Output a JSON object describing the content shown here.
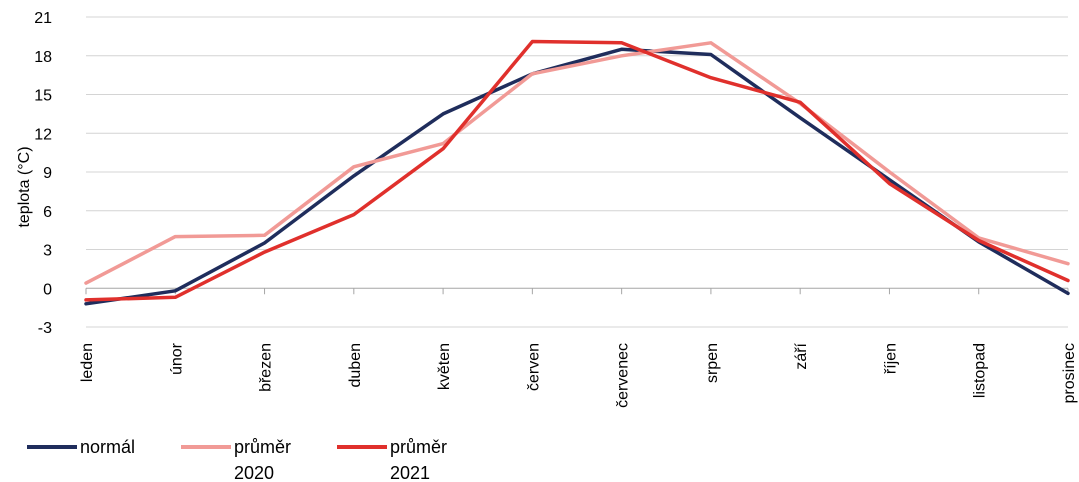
{
  "chart_data": {
    "type": "line",
    "title": "",
    "xlabel": "",
    "ylabel": "teplota (°C)",
    "ylim": [
      -3,
      21
    ],
    "yticks": [
      -3,
      0,
      3,
      6,
      9,
      12,
      15,
      18,
      21
    ],
    "ytick_labels": [
      "-3",
      "0",
      "3",
      "6",
      "9",
      "12",
      "15",
      "18",
      "21"
    ],
    "grid": true,
    "legend_position": "bottom-left",
    "categories": [
      "leden",
      "únor",
      "březen",
      "duben",
      "květen",
      "červen",
      "červenec",
      "srpen",
      "září",
      "říjen",
      "listopad",
      "prosinec"
    ],
    "series": [
      {
        "name": "normál",
        "color": "#1f2d5c",
        "values": [
          -1.2,
          -0.2,
          3.5,
          8.7,
          13.5,
          16.6,
          18.5,
          18.1,
          13.2,
          8.4,
          3.6,
          -0.4
        ]
      },
      {
        "name": "průměr 2020",
        "color": "#f19a96",
        "values": [
          0.4,
          4.0,
          4.1,
          9.4,
          11.2,
          16.6,
          18.0,
          19.0,
          14.3,
          9.0,
          3.9,
          1.9
        ]
      },
      {
        "name": "průměr 2021",
        "color": "#e0302c",
        "values": [
          -0.9,
          -0.7,
          2.8,
          5.7,
          10.8,
          19.1,
          19.0,
          16.3,
          14.4,
          8.1,
          3.7,
          0.6
        ]
      }
    ],
    "legend": [
      {
        "line1": "normál",
        "line2": ""
      },
      {
        "line1": "průměr",
        "line2": "2020"
      },
      {
        "line1": "průměr",
        "line2": "2021"
      }
    ]
  }
}
